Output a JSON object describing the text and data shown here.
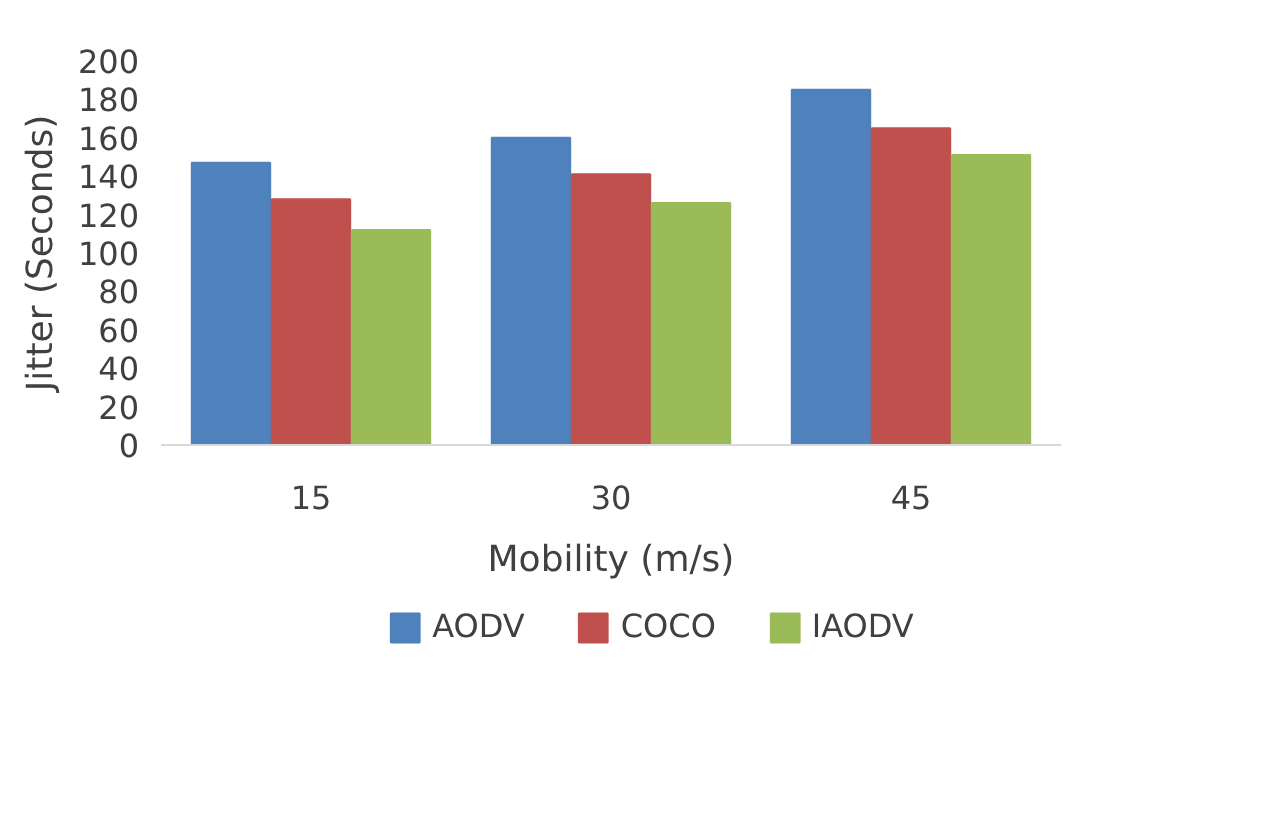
{
  "chart_data": {
    "type": "bar",
    "xlabel": "Mobility (m/s)",
    "ylabel": "Jitter (Seconds)",
    "categories": [
      "15",
      "30",
      "45"
    ],
    "series": [
      {
        "name": "AODV",
        "color": "#4f81bd",
        "values": [
          147,
          160,
          185
        ]
      },
      {
        "name": "COCO",
        "color": "#c0504d",
        "values": [
          128,
          141,
          165
        ]
      },
      {
        "name": "IAODV",
        "color": "#9bbb59",
        "values": [
          112,
          126,
          151
        ]
      }
    ],
    "ylim": [
      0,
      200
    ],
    "yticks": [
      0,
      20,
      40,
      60,
      80,
      100,
      120,
      140,
      160,
      180,
      200
    ],
    "grid": false,
    "legend": "bottom"
  }
}
